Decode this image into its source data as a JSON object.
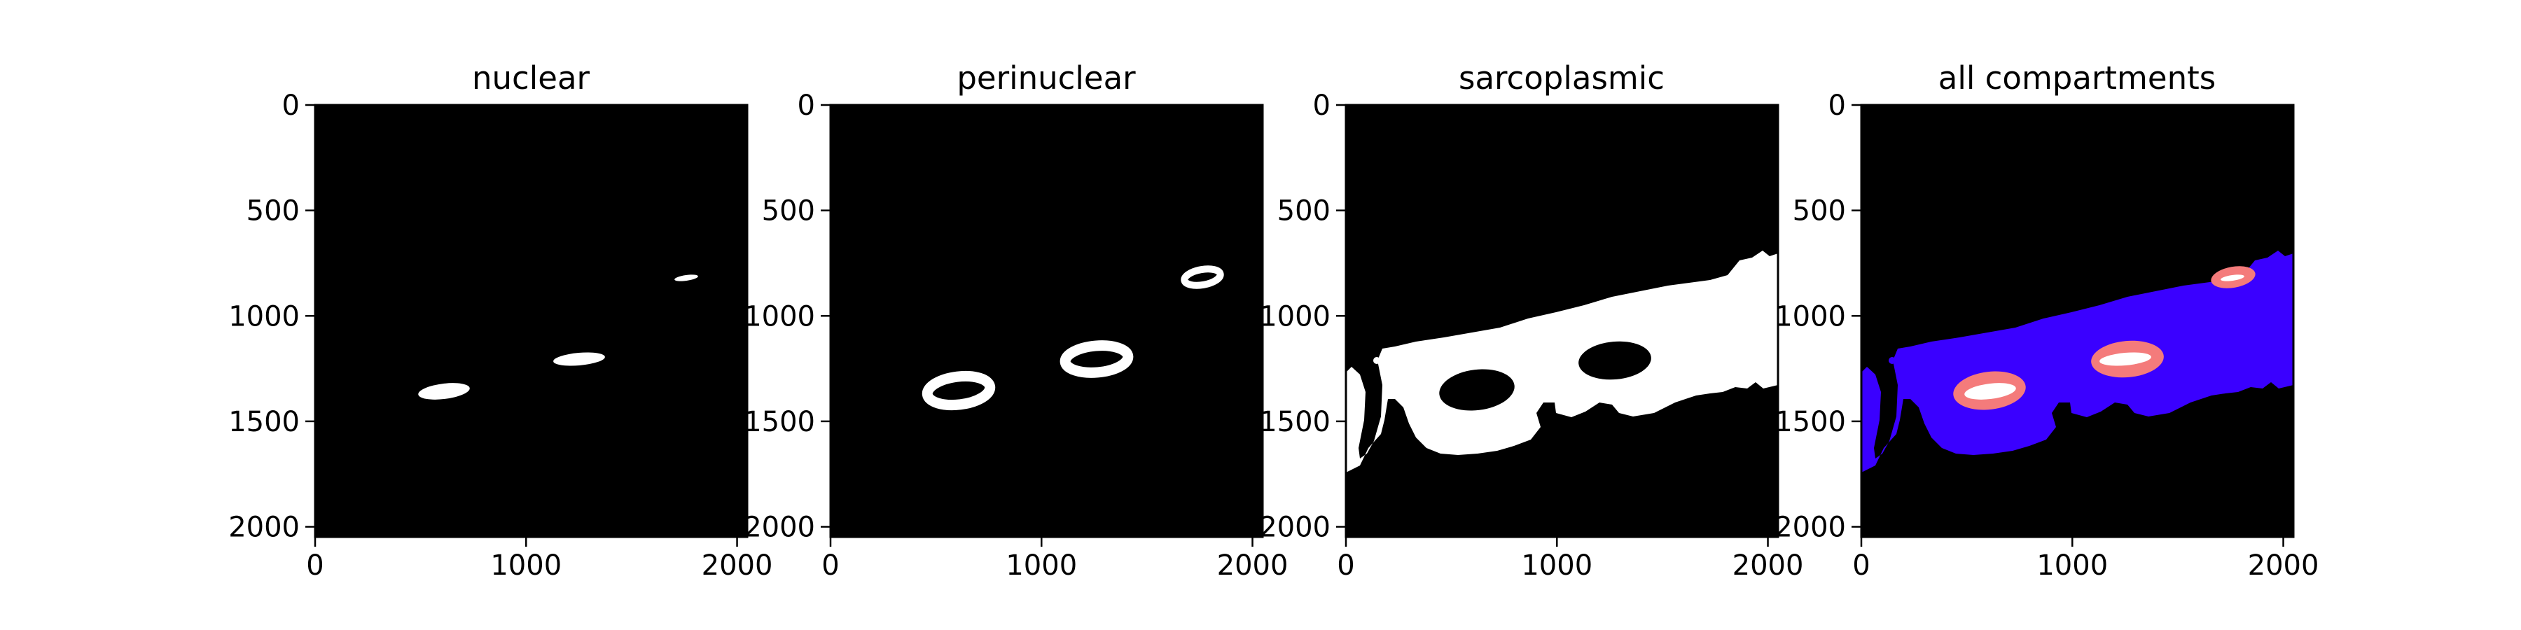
{
  "figure": {
    "background": "#ffffff",
    "panel_background": "#000000",
    "mask_white": "#ffffff",
    "mask_pink": "#f47b7b",
    "mask_blue": "#3a00ff"
  },
  "chart_data": [
    {
      "type": "heatmap",
      "title": "nuclear",
      "xlabel": "",
      "ylabel": "",
      "xlim": [
        0,
        2048
      ],
      "ylim": [
        2048,
        0
      ],
      "xticks": [
        0,
        1000,
        2000
      ],
      "yticks": [
        0,
        500,
        1000,
        1500,
        2000
      ],
      "xtick_labels": [
        "0",
        "1000",
        "2000"
      ],
      "ytick_labels": [
        "0",
        "500",
        "1000",
        "1500",
        "2000"
      ],
      "grid": false,
      "colors": [
        "#000000",
        "#ffffff"
      ]
    },
    {
      "type": "heatmap",
      "title": "perinuclear",
      "xlabel": "",
      "ylabel": "",
      "xlim": [
        0,
        2048
      ],
      "ylim": [
        2048,
        0
      ],
      "xticks": [
        0,
        1000,
        2000
      ],
      "yticks": [
        0,
        500,
        1000,
        1500,
        2000
      ],
      "xtick_labels": [
        "0",
        "1000",
        "2000"
      ],
      "ytick_labels": [
        "0",
        "500",
        "1000",
        "1500",
        "2000"
      ],
      "grid": false,
      "colors": [
        "#000000",
        "#ffffff"
      ]
    },
    {
      "type": "heatmap",
      "title": "sarcoplasmic",
      "xlabel": "",
      "ylabel": "",
      "xlim": [
        0,
        2048
      ],
      "ylim": [
        2048,
        0
      ],
      "xticks": [
        0,
        1000,
        2000
      ],
      "yticks": [
        0,
        500,
        1000,
        1500,
        2000
      ],
      "xtick_labels": [
        "0",
        "1000",
        "2000"
      ],
      "ytick_labels": [
        "0",
        "500",
        "1000",
        "1500",
        "2000"
      ],
      "grid": false,
      "colors": [
        "#000000",
        "#ffffff"
      ]
    },
    {
      "type": "heatmap",
      "title": "all compartments",
      "xlabel": "",
      "ylabel": "",
      "xlim": [
        0,
        2048
      ],
      "ylim": [
        2048,
        0
      ],
      "xticks": [
        0,
        1000,
        2000
      ],
      "yticks": [
        0,
        500,
        1000,
        1500,
        2000
      ],
      "xtick_labels": [
        "0",
        "1000",
        "2000"
      ],
      "ytick_labels": [
        "0",
        "500",
        "1000",
        "1500",
        "2000"
      ],
      "grid": false,
      "colors": [
        "#000000",
        "#3a00ff",
        "#f47b7b",
        "#ffffff"
      ]
    }
  ]
}
